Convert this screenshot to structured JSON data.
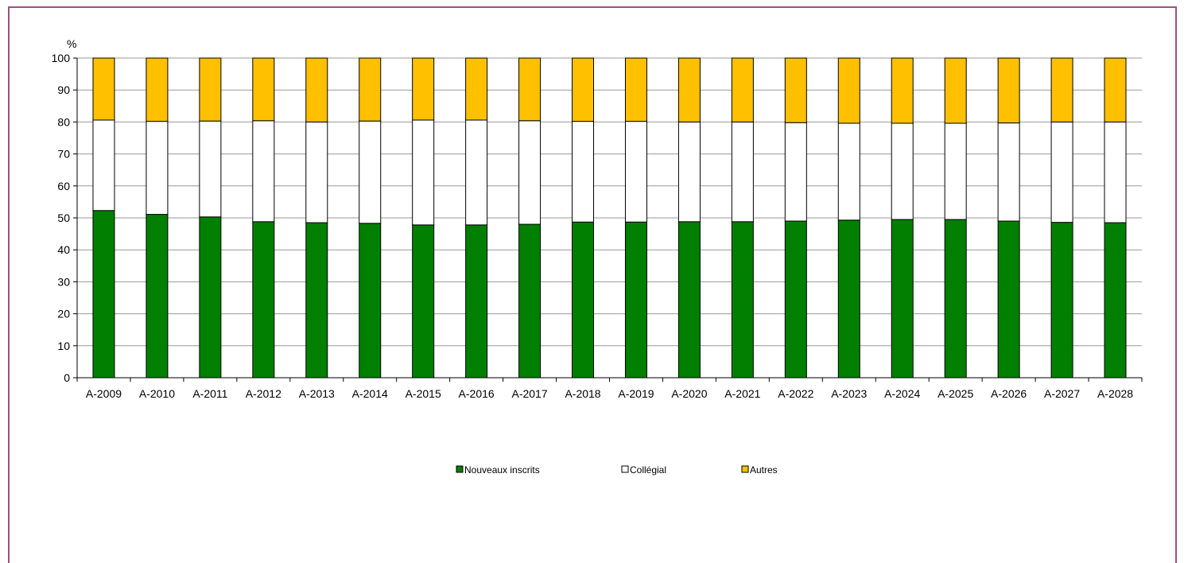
{
  "chart_data": {
    "type": "bar",
    "stacked": true,
    "unit_label": "%",
    "ylim": [
      0,
      100
    ],
    "yticks": [
      0,
      10,
      20,
      30,
      40,
      50,
      60,
      70,
      80,
      90,
      100
    ],
    "grid": true,
    "legend_position": "bottom",
    "categories": [
      "A-2009",
      "A-2010",
      "A-2011",
      "A-2012",
      "A-2013",
      "A-2014",
      "A-2015",
      "A-2016",
      "A-2017",
      "A-2018",
      "A-2019",
      "A-2020",
      "A-2021",
      "A-2022",
      "A-2023",
      "A-2024",
      "A-2025",
      "A-2026",
      "A-2027",
      "A-2028"
    ],
    "series": [
      {
        "name": "Nouveaux inscrits",
        "color": "#007f00",
        "values": [
          52.3,
          51.1,
          50.3,
          48.8,
          48.5,
          48.3,
          47.8,
          47.8,
          48.0,
          48.7,
          48.7,
          48.8,
          48.8,
          49.0,
          49.3,
          49.5,
          49.5,
          49.0,
          48.6,
          48.5
        ]
      },
      {
        "name": "Collégial",
        "color": "#ffffff",
        "values": [
          28.3,
          29.1,
          30.0,
          31.6,
          31.5,
          32.0,
          32.8,
          32.8,
          32.4,
          31.5,
          31.5,
          31.2,
          31.2,
          30.8,
          30.3,
          30.1,
          30.1,
          30.7,
          31.4,
          31.5
        ]
      },
      {
        "name": "Autres",
        "color": "#ffc000",
        "values": [
          19.4,
          19.8,
          19.7,
          19.6,
          20.0,
          19.7,
          19.4,
          19.4,
          19.6,
          19.8,
          19.8,
          20.0,
          20.0,
          20.2,
          20.4,
          20.4,
          20.4,
          20.3,
          20.0,
          20.0
        ]
      }
    ]
  }
}
